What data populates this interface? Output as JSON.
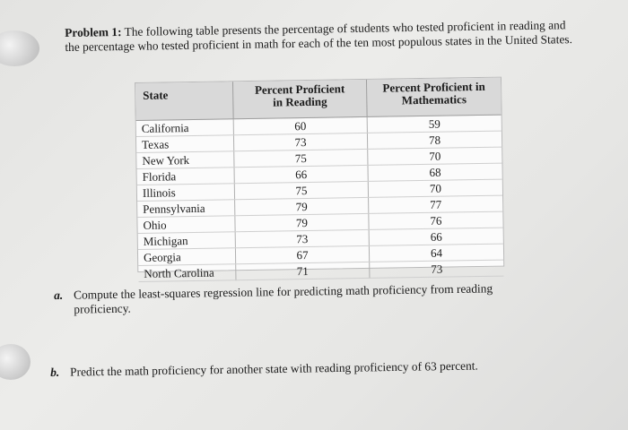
{
  "problem": {
    "label": "Problem 1:",
    "text": "The following table presents the percentage of students who tested proficient in reading and the percentage who tested proficient in math for each of the ten most populous states in the United States."
  },
  "table": {
    "headers": {
      "state": "State",
      "reading_line1": "Percent Proficient",
      "reading_line2": "in Reading",
      "math_line1": "Percent Proficient in",
      "math_line2": "Mathematics"
    },
    "rows": [
      {
        "state": "California",
        "reading": "60",
        "math": "59"
      },
      {
        "state": "Texas",
        "reading": "73",
        "math": "78"
      },
      {
        "state": "New York",
        "reading": "75",
        "math": "70"
      },
      {
        "state": "Florida",
        "reading": "66",
        "math": "68"
      },
      {
        "state": "Illinois",
        "reading": "75",
        "math": "70"
      },
      {
        "state": "Pennsylvania",
        "reading": "79",
        "math": "77"
      },
      {
        "state": "Ohio",
        "reading": "79",
        "math": "76"
      },
      {
        "state": "Michigan",
        "reading": "73",
        "math": "66"
      },
      {
        "state": "Georgia",
        "reading": "67",
        "math": "64"
      },
      {
        "state": "North Carolina",
        "reading": "71",
        "math": "73"
      }
    ]
  },
  "questions": {
    "a": {
      "label": "a.",
      "line1": "Compute the least-squares regression line for predicting math proficiency from reading",
      "line2": "proficiency."
    },
    "b": {
      "label": "b.",
      "text": "Predict the math proficiency for another state with reading proficiency of 63 percent."
    }
  }
}
